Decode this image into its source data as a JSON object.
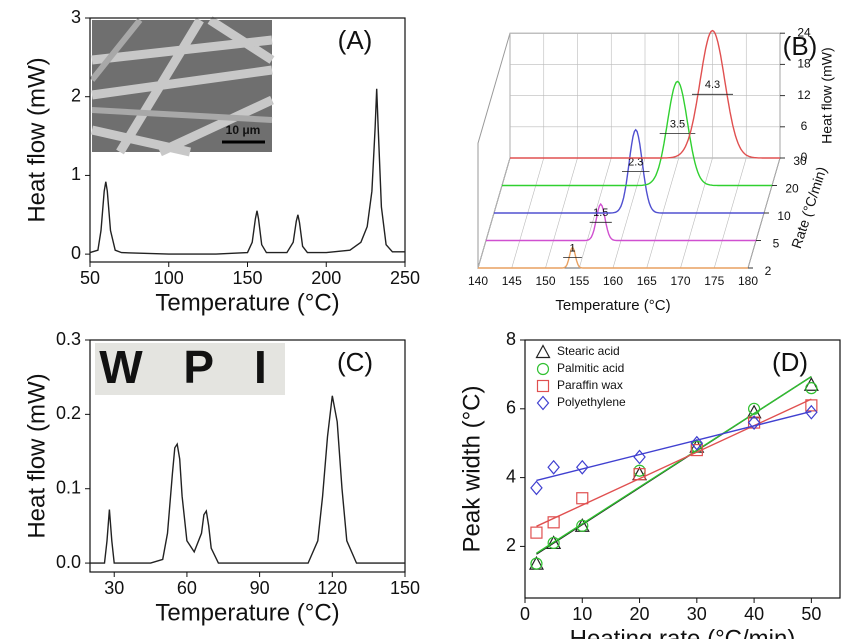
{
  "chart_data": [
    {
      "type": "line",
      "label": "(A)",
      "x_label": "Temperature (°C)",
      "y_label": "Heat flow (mW)",
      "inset_label": "10 μm",
      "color": "#222222",
      "xlim": [
        50,
        250
      ],
      "xticks": [
        50,
        100,
        150,
        200,
        250
      ],
      "ylim": [
        -0.1,
        3
      ],
      "yticks": [
        0,
        1,
        2,
        3
      ],
      "x": [
        50,
        55,
        57,
        59,
        60,
        61,
        63,
        66,
        70,
        100,
        130,
        150,
        153,
        155,
        156,
        157,
        159,
        162,
        175,
        179,
        181,
        182,
        183,
        185,
        188,
        200,
        215,
        222,
        226,
        229,
        231,
        232,
        233,
        235,
        238,
        242,
        250
      ],
      "values": [
        0.02,
        0.05,
        0.3,
        0.8,
        0.92,
        0.8,
        0.3,
        0.05,
        0.02,
        0.0,
        0.0,
        0.02,
        0.15,
        0.45,
        0.55,
        0.45,
        0.12,
        0.02,
        0.02,
        0.15,
        0.42,
        0.5,
        0.4,
        0.1,
        0.02,
        0.02,
        0.05,
        0.15,
        0.35,
        0.8,
        1.6,
        2.1,
        1.6,
        0.6,
        0.12,
        0.03,
        0.03
      ]
    },
    {
      "type": "waterfall",
      "label": "(B)",
      "x_label": "Temperature (°C)",
      "y_label": "Heat flow (mW)",
      "z_label": "Rate (°C/min)",
      "xlim": [
        140,
        180
      ],
      "xticks": [
        140,
        145,
        150,
        155,
        160,
        165,
        170,
        175,
        180
      ],
      "ylim": [
        0,
        24
      ],
      "yticks": [
        0,
        6,
        12,
        18,
        24
      ],
      "series": [
        {
          "name": "2",
          "color": "#e8a060",
          "peak": 154,
          "height": 4,
          "width": 1
        },
        {
          "name": "5",
          "color": "#d050d0",
          "peak": 157,
          "height": 7,
          "width": 1.5
        },
        {
          "name": "10",
          "color": "#5050d0",
          "peak": 161,
          "height": 16,
          "width": 2.3
        },
        {
          "name": "20",
          "color": "#30d030",
          "peak": 166,
          "height": 20,
          "width": 3.5
        },
        {
          "name": "30",
          "color": "#e05050",
          "peak": 170,
          "height": 24.5,
          "width": 4.3
        }
      ]
    },
    {
      "type": "line",
      "label": "(C)",
      "x_label": "Temperature (°C)",
      "y_label": "Heat flow (mW)",
      "inset_text": "W P I",
      "color": "#222222",
      "xlim": [
        20,
        150
      ],
      "xticks": [
        30,
        60,
        90,
        120,
        150
      ],
      "ylim": [
        -0.012,
        0.3
      ],
      "yticks": [
        {
          "value": 0,
          "label": "0.0"
        },
        0.1,
        0.2,
        0.3
      ],
      "x": [
        20,
        26,
        27,
        28,
        29,
        30,
        33,
        45,
        50,
        52,
        54,
        55,
        56,
        57,
        58,
        60,
        63,
        66,
        67,
        68,
        69,
        70,
        73,
        90,
        110,
        114,
        116,
        118,
        120,
        122,
        124,
        126,
        130,
        150
      ],
      "values": [
        0,
        0,
        0.03,
        0.072,
        0.03,
        0,
        0,
        0,
        0.005,
        0.04,
        0.12,
        0.155,
        0.16,
        0.14,
        0.09,
        0.03,
        0.015,
        0.04,
        0.065,
        0.07,
        0.05,
        0.02,
        0,
        0,
        0,
        0.03,
        0.09,
        0.17,
        0.225,
        0.19,
        0.1,
        0.03,
        0,
        0
      ]
    },
    {
      "type": "scatter",
      "label": "(D)",
      "x_label": "Heating rate (°C/min)",
      "y_label": "Peak width (°C)",
      "xlim": [
        0,
        55
      ],
      "xticks": [
        0,
        10,
        20,
        30,
        40,
        50
      ],
      "ylim": [
        0.5,
        8
      ],
      "yticks": [
        2,
        4,
        6,
        8
      ],
      "x": [
        2,
        5,
        10,
        20,
        30,
        40,
        50
      ],
      "series": [
        {
          "name": "Stearic acid",
          "color": "#222222",
          "marker": "triangle",
          "values": [
            1.5,
            2.1,
            2.6,
            4.1,
            4.9,
            5.9,
            6.7
          ]
        },
        {
          "name": "Palmitic acid",
          "color": "#30c030",
          "marker": "circle",
          "values": [
            1.5,
            2.1,
            2.6,
            4.2,
            4.9,
            6.0,
            6.6
          ]
        },
        {
          "name": "Paraffin wax",
          "color": "#e05050",
          "marker": "square",
          "values": [
            2.4,
            2.7,
            3.4,
            4.1,
            4.8,
            5.6,
            6.1
          ]
        },
        {
          "name": "Polyethylene",
          "color": "#4040d0",
          "marker": "diamond",
          "values": [
            3.7,
            4.3,
            4.3,
            4.6,
            5.0,
            5.6,
            5.9
          ]
        }
      ]
    }
  ]
}
